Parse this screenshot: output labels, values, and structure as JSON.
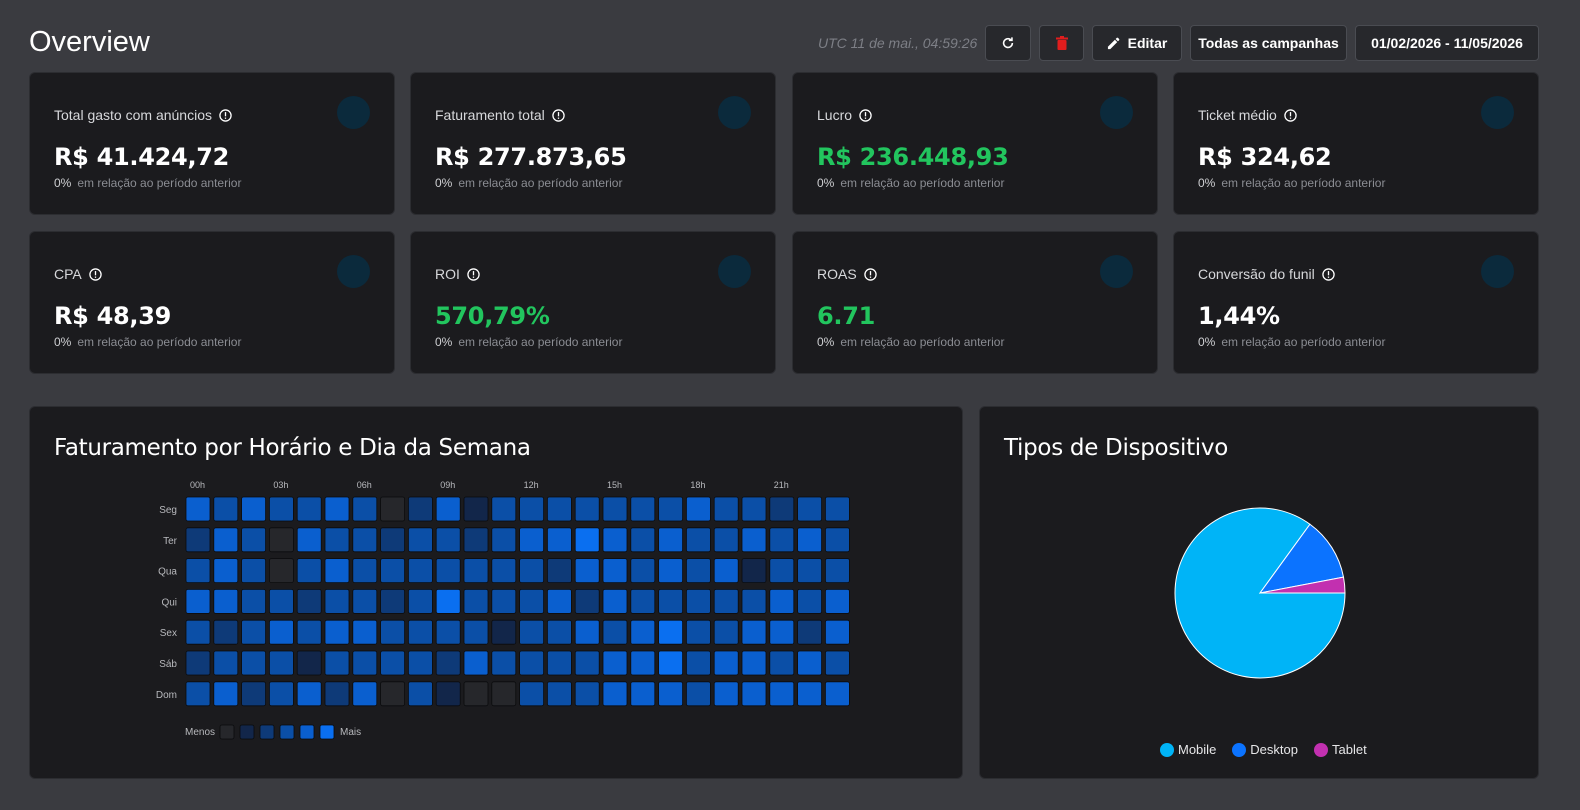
{
  "header": {
    "title": "Overview",
    "timestamp": "UTC 11 de mai., 04:59:26",
    "edit_label": "Editar",
    "campaigns_label": "Todas as campanhas",
    "date_range": "01/02/2026 - 11/05/2026"
  },
  "metrics": [
    {
      "label": "Total gasto com anúncios",
      "value": "R$ 41.424,72",
      "pct": "0%",
      "comparison": "em relação ao período anterior",
      "accent": "#ffffff"
    },
    {
      "label": "Faturamento total",
      "value": "R$ 277.873,65",
      "pct": "0%",
      "comparison": "em relação ao período anterior",
      "accent": "#ffffff"
    },
    {
      "label": "Lucro",
      "value": "R$ 236.448,93",
      "pct": "0%",
      "comparison": "em relação ao período anterior",
      "accent": "#22c55e"
    },
    {
      "label": "Ticket médio",
      "value": "R$ 324,62",
      "pct": "0%",
      "comparison": "em relação ao período anterior",
      "accent": "#ffffff"
    },
    {
      "label": "CPA",
      "value": "R$ 48,39",
      "pct": "0%",
      "comparison": "em relação ao período anterior",
      "accent": "#ffffff"
    },
    {
      "label": "ROI",
      "value": "570,79%",
      "pct": "0%",
      "comparison": "em relação ao período anterior",
      "accent": "#22c55e"
    },
    {
      "label": "ROAS",
      "value": "6.71",
      "pct": "0%",
      "comparison": "em relação ao período anterior",
      "accent": "#22c55e"
    },
    {
      "label": "Conversão do funil",
      "value": "1,44%",
      "pct": "0%",
      "comparison": "em relação ao período anterior",
      "accent": "#ffffff"
    }
  ],
  "heatmap": {
    "title": "Faturamento por Horário e Dia da Semana",
    "hour_labels": [
      "00h",
      "03h",
      "06h",
      "09h",
      "12h",
      "15h",
      "18h",
      "21h"
    ],
    "days": [
      "Seg",
      "Ter",
      "Qua",
      "Qui",
      "Sex",
      "Sáb",
      "Dom"
    ],
    "legend_less": "Menos",
    "legend_more": "Mais",
    "levels": [
      [
        4,
        3,
        4,
        3,
        3,
        4,
        3,
        0,
        2,
        4,
        1,
        3,
        3,
        3,
        3,
        3,
        3,
        3,
        4,
        3,
        3,
        2,
        3,
        3
      ],
      [
        2,
        4,
        3,
        0,
        4,
        3,
        3,
        2,
        3,
        3,
        2,
        3,
        4,
        4,
        5,
        4,
        3,
        4,
        3,
        3,
        4,
        3,
        4,
        3
      ],
      [
        3,
        4,
        3,
        0,
        3,
        4,
        3,
        3,
        3,
        3,
        3,
        3,
        3,
        2,
        4,
        4,
        3,
        4,
        3,
        4,
        1,
        3,
        3,
        3
      ],
      [
        4,
        4,
        3,
        3,
        2,
        3,
        3,
        2,
        3,
        5,
        3,
        3,
        3,
        4,
        2,
        4,
        3,
        3,
        3,
        3,
        3,
        4,
        3,
        4
      ],
      [
        3,
        2,
        3,
        4,
        3,
        4,
        4,
        3,
        3,
        3,
        3,
        1,
        3,
        3,
        4,
        3,
        4,
        5,
        3,
        3,
        4,
        4,
        2,
        4
      ],
      [
        2,
        3,
        3,
        3,
        1,
        3,
        3,
        3,
        3,
        2,
        4,
        3,
        3,
        3,
        3,
        4,
        4,
        5,
        3,
        4,
        4,
        3,
        4,
        3
      ],
      [
        3,
        4,
        2,
        3,
        4,
        2,
        4,
        0,
        3,
        1,
        0,
        0,
        3,
        3,
        3,
        4,
        4,
        4,
        3,
        4,
        4,
        4,
        4,
        4
      ]
    ],
    "colors": [
      "#26272b",
      "#12264a",
      "#0e3a78",
      "#0b4fa7",
      "#0a5fcf",
      "#0a6ff0"
    ]
  },
  "devices": {
    "title": "Tipos de Dispositivo",
    "chart_data": {
      "type": "pie",
      "labels": [
        "Mobile",
        "Desktop",
        "Tablet"
      ],
      "values": [
        85,
        12,
        3
      ],
      "colors": [
        "#00b4f7",
        "#0b73ff",
        "#c230b0"
      ],
      "legend": "bottom"
    }
  }
}
